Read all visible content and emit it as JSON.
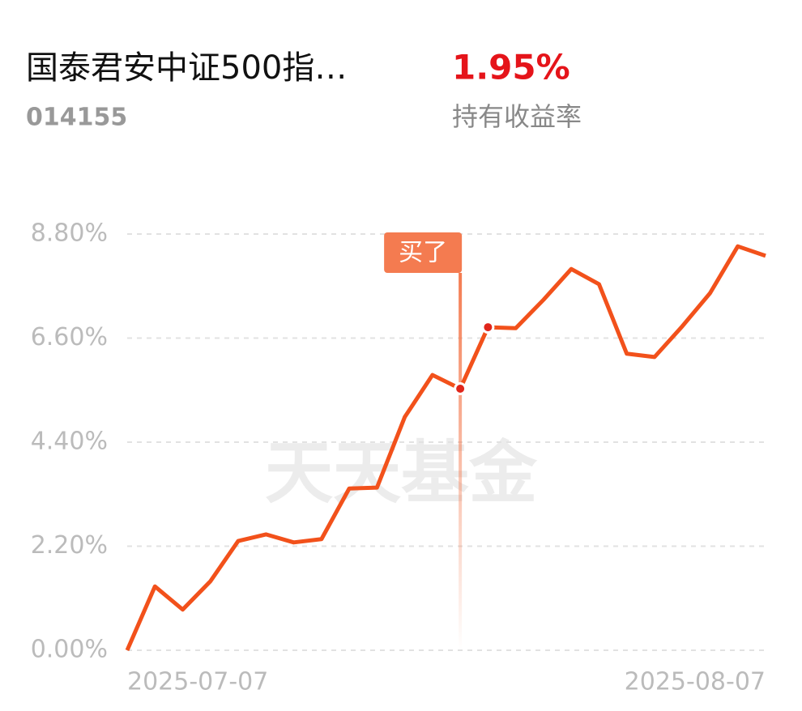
{
  "header": {
    "fund_name": "国泰君安中证500指…",
    "fund_code": "014155",
    "return_value": "1.95%",
    "return_label": "持有收益率"
  },
  "chart_data": {
    "type": "line",
    "watermark": "天天基金",
    "categories": [
      "2025-07-07",
      null,
      null,
      null,
      null,
      null,
      null,
      null,
      null,
      null,
      null,
      null,
      null,
      null,
      null,
      null,
      null,
      null,
      null,
      null,
      null,
      null,
      null,
      "2025-08-07"
    ],
    "values": [
      0,
      1.35,
      0.86,
      1.46,
      2.31,
      2.45,
      2.28,
      2.35,
      3.42,
      3.44,
      4.93,
      5.82,
      5.53,
      6.83,
      6.81,
      7.41,
      8.06,
      7.74,
      6.27,
      6.2,
      6.85,
      7.55,
      8.54,
      8.34
    ],
    "color": "#f2511b",
    "ylim": [
      0,
      8.8
    ],
    "yticks": [
      {
        "value": 0,
        "label": "0.00%"
      },
      {
        "value": 2.2,
        "label": "2.20%"
      },
      {
        "value": 4.4,
        "label": "4.40%"
      },
      {
        "value": 6.6,
        "label": "6.60%"
      },
      {
        "value": 8.8,
        "label": "8.80%"
      }
    ],
    "grid": true,
    "buy_marker": {
      "label": "买了",
      "index": 12
    },
    "highlight_points": [
      12,
      13
    ]
  }
}
